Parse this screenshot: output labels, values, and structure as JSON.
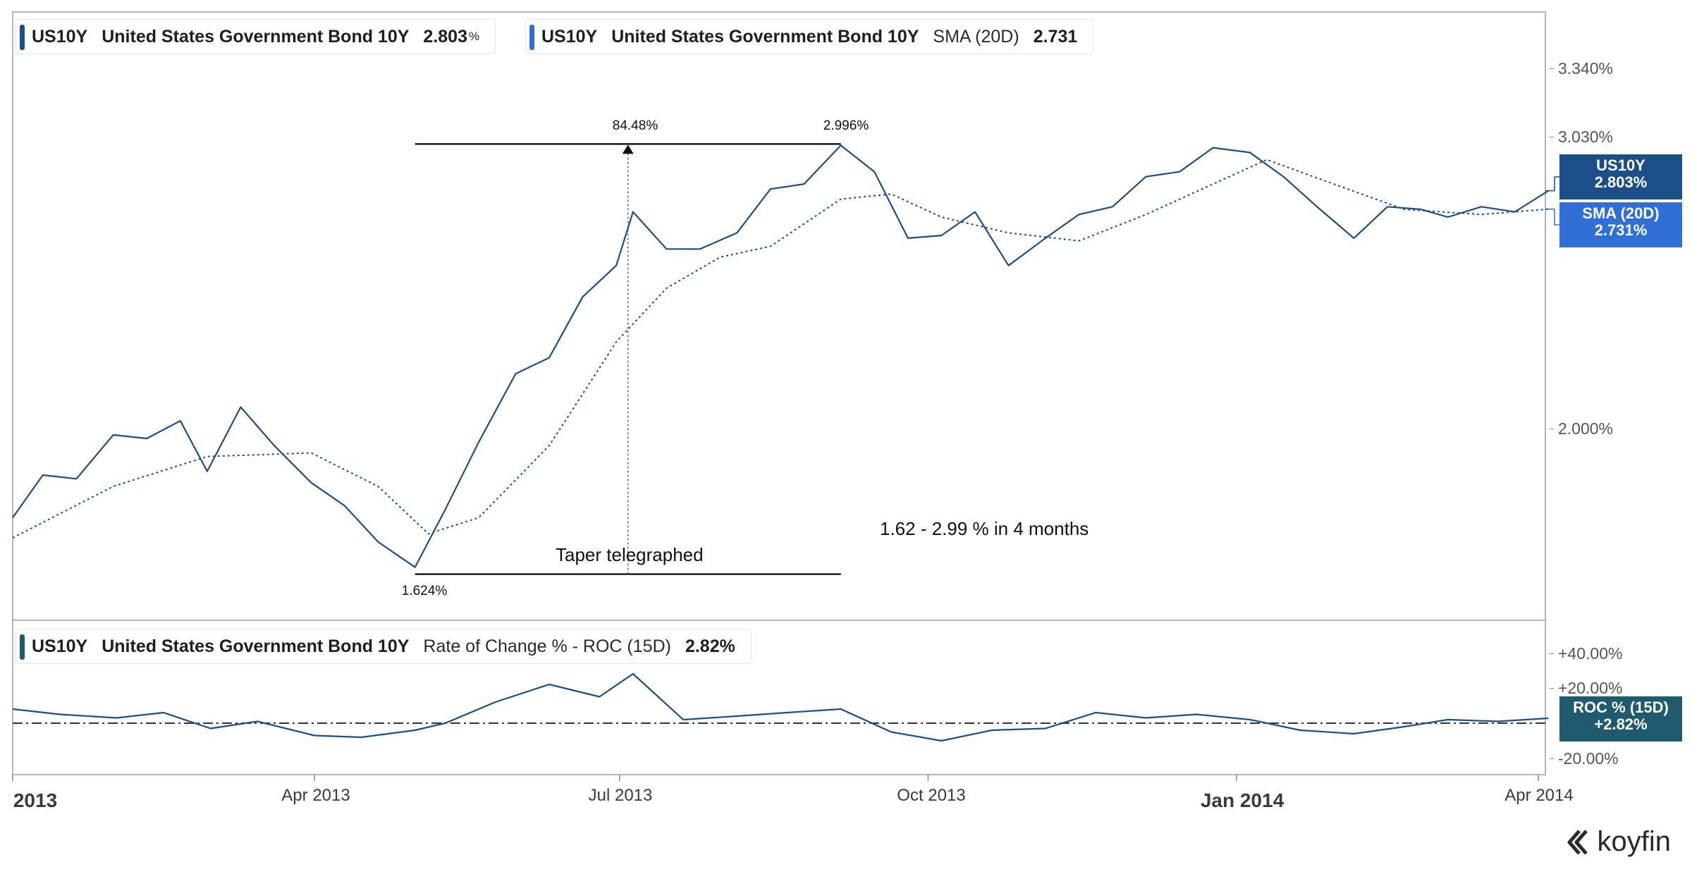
{
  "legends": {
    "main": {
      "symbol": "US10Y",
      "name": "United States Government Bond 10Y",
      "value": "2.803",
      "unit": "%"
    },
    "sma": {
      "symbol": "US10Y",
      "name": "United States Government Bond 10Y",
      "indicator": "SMA (20D)",
      "value": "2.731"
    },
    "roc": {
      "symbol": "US10Y",
      "name": "United States Government Bond 10Y",
      "indicator": "Rate of Change % - ROC (15D)",
      "value": "2.82%"
    }
  },
  "tags": {
    "us10y": {
      "line1": "US10Y",
      "line2": "2.803%"
    },
    "sma": {
      "line1": "SMA (20D)",
      "line2": "2.731%"
    },
    "roc": {
      "line1": "ROC % (15D)",
      "line2": "+2.82%"
    }
  },
  "annotations": {
    "roc_pct": "84.48%",
    "high": "2.996%",
    "low": "1.624%",
    "taper": "Taper telegraphed",
    "move": "1.62 - 2.99 % in 4 months"
  },
  "brand": "koyfin",
  "colors": {
    "line": "#1b4f86",
    "tag_main": "#1c4f8a",
    "tag_sma": "#2f6fd6",
    "tag_roc": "#1f5a6e"
  },
  "chart_data": [
    {
      "type": "line",
      "scale": "log",
      "y_ticks": [
        "3.340%",
        "3.030%",
        "2.000%"
      ],
      "y_tick_values": [
        3.34,
        3.03,
        2.0
      ],
      "ylim": [
        1.55,
        3.5
      ],
      "x_ticks": [
        {
          "label": "2013",
          "date": "2013-01-01",
          "major": true
        },
        {
          "label": "Apr 2013",
          "date": "2013-04-01",
          "major": false
        },
        {
          "label": "Jul 2013",
          "date": "2013-07-01",
          "major": false
        },
        {
          "label": "Oct 2013",
          "date": "2013-10-01",
          "major": false
        },
        {
          "label": "Jan 2014",
          "date": "2014-01-01",
          "major": true
        },
        {
          "label": "Apr 2014",
          "date": "2014-04-01",
          "major": false
        }
      ],
      "series": [
        {
          "name": "US10Y",
          "style": "solid",
          "points": [
            [
              "2013-01-01",
              1.76
            ],
            [
              "2013-01-10",
              1.87
            ],
            [
              "2013-01-20",
              1.86
            ],
            [
              "2013-01-31",
              1.98
            ],
            [
              "2013-02-10",
              1.97
            ],
            [
              "2013-02-20",
              2.02
            ],
            [
              "2013-02-28",
              1.88
            ],
            [
              "2013-03-10",
              2.06
            ],
            [
              "2013-03-20",
              1.95
            ],
            [
              "2013-03-31",
              1.85
            ],
            [
              "2013-04-10",
              1.79
            ],
            [
              "2013-04-20",
              1.7
            ],
            [
              "2013-05-01",
              1.64
            ],
            [
              "2013-05-10",
              1.78
            ],
            [
              "2013-05-20",
              1.96
            ],
            [
              "2013-05-31",
              2.16
            ],
            [
              "2013-06-10",
              2.21
            ],
            [
              "2013-06-20",
              2.41
            ],
            [
              "2013-06-30",
              2.52
            ],
            [
              "2013-07-05",
              2.72
            ],
            [
              "2013-07-15",
              2.58
            ],
            [
              "2013-07-25",
              2.58
            ],
            [
              "2013-08-05",
              2.64
            ],
            [
              "2013-08-15",
              2.81
            ],
            [
              "2013-08-25",
              2.83
            ],
            [
              "2013-09-05",
              2.99
            ],
            [
              "2013-09-15",
              2.88
            ],
            [
              "2013-09-25",
              2.62
            ],
            [
              "2013-10-05",
              2.63
            ],
            [
              "2013-10-15",
              2.72
            ],
            [
              "2013-10-25",
              2.52
            ],
            [
              "2013-11-05",
              2.62
            ],
            [
              "2013-11-15",
              2.71
            ],
            [
              "2013-11-25",
              2.74
            ],
            [
              "2013-12-05",
              2.86
            ],
            [
              "2013-12-15",
              2.88
            ],
            [
              "2013-12-25",
              2.98
            ],
            [
              "2014-01-05",
              2.96
            ],
            [
              "2014-01-15",
              2.86
            ],
            [
              "2014-01-25",
              2.74
            ],
            [
              "2014-02-05",
              2.62
            ],
            [
              "2014-02-15",
              2.74
            ],
            [
              "2014-02-25",
              2.73
            ],
            [
              "2014-03-05",
              2.7
            ],
            [
              "2014-03-15",
              2.74
            ],
            [
              "2014-03-25",
              2.72
            ],
            [
              "2014-04-04",
              2.803
            ]
          ]
        },
        {
          "name": "SMA (20D)",
          "style": "dotted",
          "points": [
            [
              "2013-01-01",
              1.71
            ],
            [
              "2013-01-31",
              1.84
            ],
            [
              "2013-02-28",
              1.92
            ],
            [
              "2013-03-31",
              1.93
            ],
            [
              "2013-04-20",
              1.84
            ],
            [
              "2013-05-05",
              1.72
            ],
            [
              "2013-05-20",
              1.76
            ],
            [
              "2013-06-10",
              1.95
            ],
            [
              "2013-06-30",
              2.26
            ],
            [
              "2013-07-15",
              2.44
            ],
            [
              "2013-07-31",
              2.55
            ],
            [
              "2013-08-15",
              2.59
            ],
            [
              "2013-09-05",
              2.77
            ],
            [
              "2013-09-20",
              2.79
            ],
            [
              "2013-10-05",
              2.7
            ],
            [
              "2013-10-25",
              2.64
            ],
            [
              "2013-11-15",
              2.61
            ],
            [
              "2013-12-05",
              2.71
            ],
            [
              "2013-12-25",
              2.83
            ],
            [
              "2014-01-10",
              2.93
            ],
            [
              "2014-01-30",
              2.83
            ],
            [
              "2014-02-20",
              2.73
            ],
            [
              "2014-03-15",
              2.71
            ],
            [
              "2014-04-04",
              2.731
            ]
          ]
        }
      ]
    },
    {
      "type": "line",
      "y_ticks": [
        "+40.00%",
        "+20.00%",
        "-20.00%"
      ],
      "y_tick_values": [
        40,
        20,
        -20
      ],
      "ylim": [
        -30,
        50
      ],
      "series": [
        {
          "name": "ROC % (15D)",
          "style": "solid",
          "points": [
            [
              "2013-01-01",
              8
            ],
            [
              "2013-01-15",
              5
            ],
            [
              "2013-02-01",
              3
            ],
            [
              "2013-02-15",
              6
            ],
            [
              "2013-03-01",
              -3
            ],
            [
              "2013-03-15",
              1
            ],
            [
              "2013-04-01",
              -7
            ],
            [
              "2013-04-15",
              -8
            ],
            [
              "2013-05-01",
              -4
            ],
            [
              "2013-05-10",
              0
            ],
            [
              "2013-05-25",
              12
            ],
            [
              "2013-06-10",
              22
            ],
            [
              "2013-06-25",
              15
            ],
            [
              "2013-07-05",
              28
            ],
            [
              "2013-07-20",
              2
            ],
            [
              "2013-08-05",
              4
            ],
            [
              "2013-08-20",
              6
            ],
            [
              "2013-09-05",
              8
            ],
            [
              "2013-09-20",
              -5
            ],
            [
              "2013-10-05",
              -10
            ],
            [
              "2013-10-20",
              -4
            ],
            [
              "2013-11-05",
              -3
            ],
            [
              "2013-11-20",
              6
            ],
            [
              "2013-12-05",
              3
            ],
            [
              "2013-12-20",
              5
            ],
            [
              "2014-01-05",
              2
            ],
            [
              "2014-01-20",
              -4
            ],
            [
              "2014-02-05",
              -6
            ],
            [
              "2014-02-20",
              -2
            ],
            [
              "2014-03-05",
              2
            ],
            [
              "2014-03-20",
              1
            ],
            [
              "2014-04-04",
              2.82
            ]
          ]
        }
      ]
    }
  ]
}
